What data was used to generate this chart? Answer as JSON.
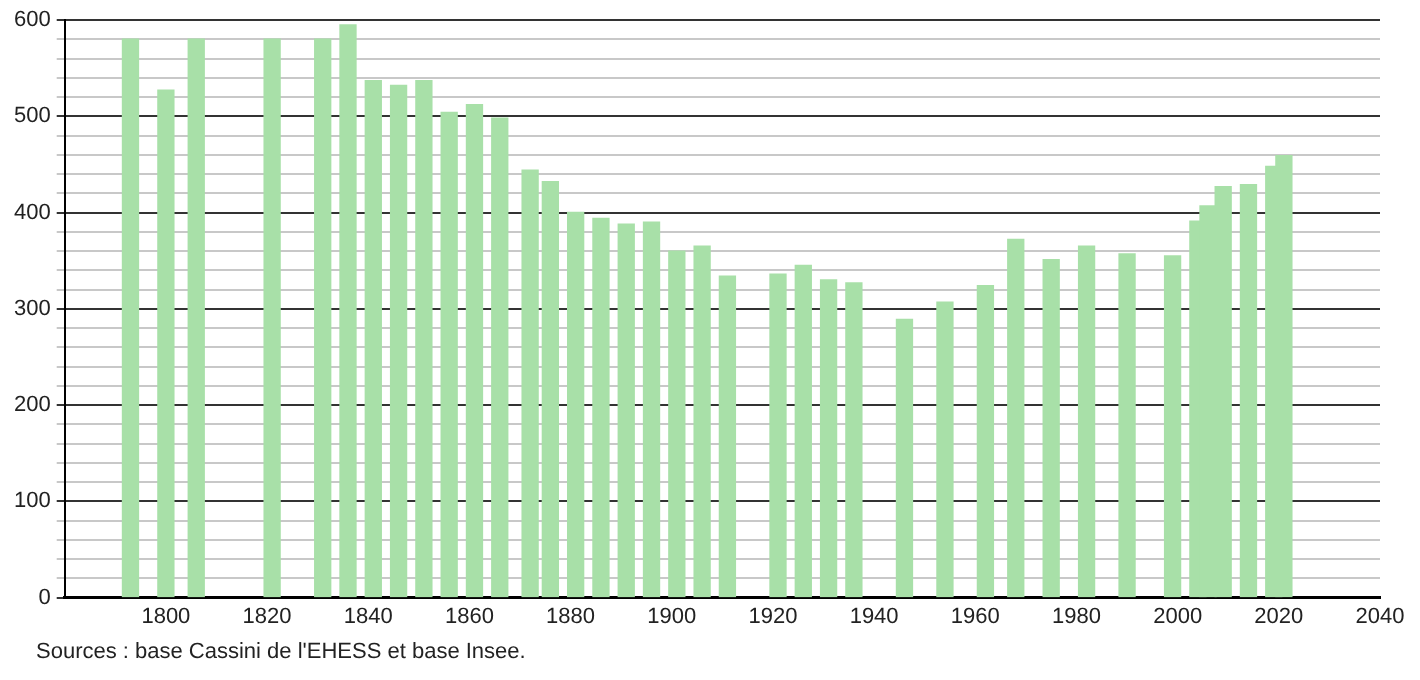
{
  "chart_data": {
    "type": "bar",
    "x": [
      1793,
      1800,
      1806,
      1821,
      1831,
      1836,
      1841,
      1846,
      1851,
      1856,
      1861,
      1866,
      1872,
      1876,
      1881,
      1886,
      1891,
      1896,
      1901,
      1906,
      1911,
      1921,
      1926,
      1931,
      1936,
      1946,
      1954,
      1962,
      1968,
      1975,
      1982,
      1990,
      1999,
      2004,
      2006,
      2009,
      2014,
      2019,
      2021
    ],
    "values": [
      580,
      527,
      580,
      580,
      580,
      595,
      537,
      532,
      537,
      504,
      512,
      498,
      444,
      432,
      400,
      394,
      388,
      390,
      360,
      365,
      334,
      336,
      345,
      330,
      327,
      289,
      307,
      324,
      372,
      351,
      365,
      357,
      355,
      391,
      407,
      427,
      429,
      448,
      459
    ],
    "color": "#a8e0a8",
    "xlim": [
      1780,
      2040
    ],
    "xticks": [
      1800,
      1820,
      1840,
      1860,
      1880,
      1900,
      1920,
      1940,
      1960,
      1980,
      2000,
      2020,
      2040
    ],
    "ylim": [
      0,
      600
    ],
    "yticks": [
      0,
      {
        "value": 20,
        "label": null
      },
      {
        "value": 40,
        "label": null
      },
      {
        "value": 60,
        "label": null
      },
      {
        "value": 80,
        "label": null
      },
      100,
      {
        "value": 120,
        "label": null
      },
      {
        "value": 140,
        "label": null
      },
      {
        "value": 160,
        "label": null
      },
      {
        "value": 180,
        "label": null
      },
      200,
      {
        "value": 220,
        "label": null
      },
      {
        "value": 240,
        "label": null
      },
      {
        "value": 260,
        "label": null
      },
      {
        "value": 280,
        "label": null
      },
      300,
      {
        "value": 320,
        "label": null
      },
      {
        "value": 340,
        "label": null
      },
      {
        "value": 360,
        "label": null
      },
      {
        "value": 380,
        "label": null
      },
      400,
      {
        "value": 420,
        "label": null
      },
      {
        "value": 440,
        "label": null
      },
      {
        "value": 460,
        "label": null
      },
      {
        "value": 480,
        "label": null
      },
      500,
      {
        "value": 520,
        "label": null
      },
      {
        "value": 540,
        "label": null
      },
      {
        "value": 560,
        "label": null
      },
      {
        "value": 580,
        "label": null
      },
      600
    ],
    "grid": "y",
    "legend": false,
    "annotations": [
      "Sources : base Cassini de l'EHESS et base Insee."
    ]
  }
}
